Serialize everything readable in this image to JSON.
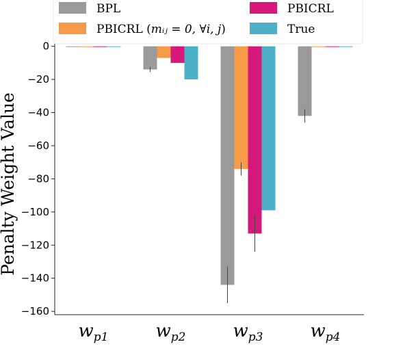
{
  "chart_data": {
    "type": "bar",
    "title": "",
    "xlabel": "",
    "ylabel": "Penalty Weight Value",
    "ylim": [
      -162,
      4
    ],
    "yticks": [
      0,
      -20,
      -40,
      -60,
      -80,
      -100,
      -120,
      -140,
      -160
    ],
    "ytick_labels": [
      "0",
      "−20",
      "−40",
      "−60",
      "−80",
      "−100",
      "−120",
      "−140",
      "−160"
    ],
    "categories": [
      {
        "base": "w",
        "sub": "p1"
      },
      {
        "base": "w",
        "sub": "p2"
      },
      {
        "base": "w",
        "sub": "p3"
      },
      {
        "base": "w",
        "sub": "p4"
      }
    ],
    "grid": false,
    "legend_position": "top",
    "series": [
      {
        "name": "BPL",
        "color": "#9a9a9a",
        "values": [
          0,
          -14,
          -144,
          -42
        ],
        "errors": [
          0,
          1.5,
          11,
          4
        ]
      },
      {
        "name": "PBICRL (m_ij = 0, ∀i, j)",
        "color": "#f79a48",
        "values": [
          0,
          -7,
          -74,
          0
        ],
        "errors": [
          0,
          0,
          4,
          0
        ]
      },
      {
        "name": "PBICRL",
        "color": "#d6187a",
        "values": [
          0,
          -10,
          -113,
          0
        ],
        "errors": [
          0,
          0,
          11,
          0
        ]
      },
      {
        "name": "True",
        "color": "#4bb0c8",
        "values": [
          0,
          -20,
          -99,
          0
        ],
        "errors": [
          0,
          0,
          0,
          0
        ]
      }
    ]
  },
  "legend": {
    "items": [
      {
        "label": "BPL",
        "color": "#9a9a9a"
      },
      {
        "label_prefix": "PBICRL (",
        "label_math": "mᵢⱼ = 0, ∀i, j",
        "label_suffix": ")",
        "color": "#f79a48"
      },
      {
        "label": "PBICRL",
        "color": "#d6187a"
      },
      {
        "label": "True",
        "color": "#4bb0c8"
      }
    ]
  }
}
